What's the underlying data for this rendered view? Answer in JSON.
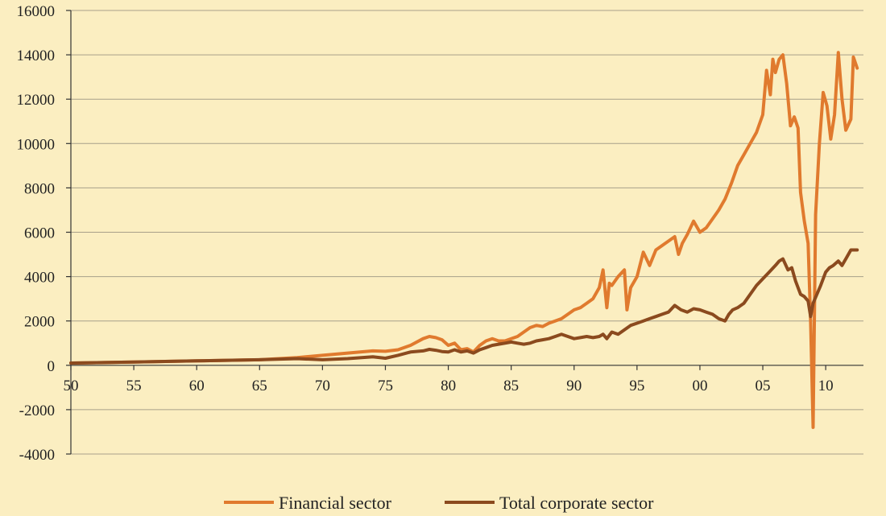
{
  "colors": {
    "background": "#fbeec1",
    "financial": "#e07a2e",
    "total": "#8b4a1e"
  },
  "chart_data": {
    "type": "line",
    "title": "",
    "xlabel": "",
    "ylabel": "",
    "xlim": [
      1950,
      2013
    ],
    "ylim": [
      -4000,
      16000
    ],
    "grid": true,
    "legend_position": "bottom",
    "x_tick_labels": [
      "50",
      "55",
      "60",
      "65",
      "70",
      "75",
      "80",
      "85",
      "90",
      "95",
      "00",
      "05",
      "10"
    ],
    "x_tick_values": [
      1950,
      1955,
      1960,
      1965,
      1970,
      1975,
      1980,
      1985,
      1990,
      1995,
      2000,
      2005,
      2010
    ],
    "y_tick_labels": [
      "16000",
      "14000",
      "12000",
      "10000",
      "8000",
      "6000",
      "4000",
      "2000",
      "0",
      "-2000",
      "-4000"
    ],
    "y_tick_values": [
      16000,
      14000,
      12000,
      10000,
      8000,
      6000,
      4000,
      2000,
      0,
      -2000,
      -4000
    ],
    "series": [
      {
        "name": "Financial sector",
        "x": [
          1950,
          1955,
          1960,
          1965,
          1968,
          1970,
          1972,
          1974,
          1975,
          1976,
          1977,
          1978,
          1978.5,
          1979,
          1979.5,
          1980,
          1980.5,
          1981,
          1981.5,
          1982,
          1982.5,
          1983,
          1983.5,
          1984,
          1984.5,
          1985,
          1985.5,
          1986,
          1986.5,
          1987,
          1987.5,
          1988,
          1988.5,
          1989,
          1989.5,
          1990,
          1990.5,
          1991,
          1991.5,
          1992,
          1992.3,
          1992.6,
          1992.8,
          1993,
          1993.5,
          1994,
          1994.2,
          1994.5,
          1995,
          1995.5,
          1996,
          1996.5,
          1997,
          1997.5,
          1998,
          1998.3,
          1998.6,
          1999,
          1999.5,
          2000,
          2000.5,
          2001,
          2001.5,
          2002,
          2002.5,
          2003,
          2003.5,
          2004,
          2004.5,
          2005,
          2005.3,
          2005.6,
          2005.8,
          2006,
          2006.3,
          2006.6,
          2006.9,
          2007.2,
          2007.5,
          2007.8,
          2008,
          2008.3,
          2008.6,
          2008.8,
          2009,
          2009.2,
          2009.5,
          2009.8,
          2010.1,
          2010.4,
          2010.7,
          2011,
          2011.3,
          2011.6,
          2012,
          2012.2,
          2012.5
        ],
        "values": [
          100,
          150,
          200,
          250,
          350,
          450,
          550,
          650,
          630,
          700,
          900,
          1200,
          1300,
          1250,
          1150,
          900,
          1000,
          700,
          750,
          600,
          900,
          1100,
          1200,
          1100,
          1100,
          1200,
          1300,
          1500,
          1700,
          1800,
          1750,
          1900,
          2000,
          2100,
          2300,
          2500,
          2600,
          2800,
          3000,
          3500,
          4300,
          2600,
          3700,
          3600,
          4000,
          4300,
          2500,
          3500,
          4000,
          5100,
          4500,
          5200,
          5400,
          5600,
          5800,
          5000,
          5500,
          5900,
          6500,
          6000,
          6200,
          6600,
          7000,
          7500,
          8200,
          9000,
          9500,
          10000,
          10500,
          11300,
          13300,
          12200,
          13800,
          13200,
          13800,
          14000,
          12700,
          10800,
          11200,
          10700,
          7800,
          6500,
          5500,
          2000,
          -2800,
          6800,
          10000,
          12300,
          11700,
          10200,
          11300,
          14100,
          12000,
          10600,
          11100,
          13900,
          13400
        ]
      },
      {
        "name": "Total corporate sector",
        "x": [
          1950,
          1955,
          1960,
          1965,
          1968,
          1970,
          1972,
          1974,
          1975,
          1976,
          1977,
          1978,
          1978.5,
          1979,
          1979.5,
          1980,
          1980.5,
          1981,
          1981.5,
          1982,
          1982.5,
          1983,
          1983.5,
          1984,
          1984.5,
          1985,
          1985.5,
          1986,
          1986.5,
          1987,
          1987.5,
          1988,
          1988.5,
          1989,
          1989.5,
          1990,
          1990.5,
          1991,
          1991.5,
          1992,
          1992.3,
          1992.6,
          1993,
          1993.5,
          1994,
          1994.5,
          1995,
          1995.5,
          1996,
          1996.5,
          1997,
          1997.5,
          1998,
          1998.5,
          1999,
          1999.5,
          2000,
          2000.5,
          2001,
          2001.5,
          2002,
          2002.3,
          2002.6,
          2003,
          2003.5,
          2004,
          2004.5,
          2005,
          2005.5,
          2006,
          2006.3,
          2006.6,
          2007,
          2007.3,
          2007.6,
          2008,
          2008.3,
          2008.6,
          2008.8,
          2009,
          2009.3,
          2009.6,
          2010,
          2010.3,
          2010.6,
          2011,
          2011.3,
          2011.6,
          2012,
          2012.5
        ],
        "values": [
          100,
          150,
          200,
          250,
          300,
          250,
          300,
          380,
          320,
          450,
          600,
          650,
          720,
          680,
          620,
          600,
          700,
          600,
          650,
          550,
          700,
          800,
          900,
          950,
          1000,
          1050,
          1000,
          950,
          1000,
          1100,
          1150,
          1200,
          1300,
          1400,
          1300,
          1200,
          1250,
          1300,
          1250,
          1300,
          1400,
          1200,
          1500,
          1400,
          1600,
          1800,
          1900,
          2000,
          2100,
          2200,
          2300,
          2400,
          2700,
          2500,
          2400,
          2550,
          2500,
          2400,
          2300,
          2100,
          2000,
          2300,
          2500,
          2600,
          2800,
          3200,
          3600,
          3900,
          4200,
          4500,
          4700,
          4800,
          4300,
          4400,
          3800,
          3200,
          3100,
          2900,
          2200,
          2800,
          3200,
          3600,
          4200,
          4400,
          4500,
          4700,
          4500,
          4800,
          5200,
          5200
        ]
      }
    ]
  }
}
